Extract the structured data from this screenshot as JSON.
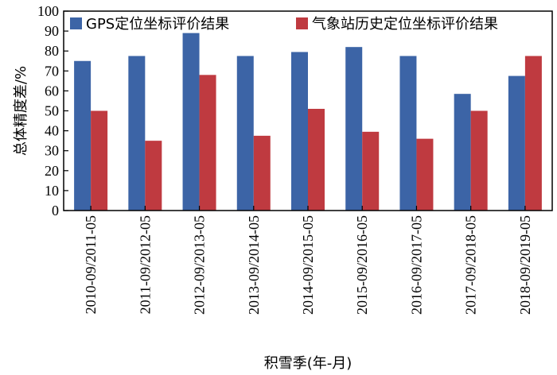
{
  "chart_data": {
    "type": "bar",
    "categories": [
      "2010-09/2011-05",
      "2011-09/2012-05",
      "2012-09/2013-05",
      "2013-09/2014-05",
      "2014-09/2015-05",
      "2015-09/2016-05",
      "2016-09/2017-05",
      "2017-09/2018-05",
      "2018-09/2019-05"
    ],
    "series": [
      {
        "name": "GPS定位坐标评价结果",
        "color": "#3c64a6",
        "values": [
          75,
          77.5,
          89,
          77.5,
          79.5,
          82,
          77.5,
          58.5,
          67.5
        ]
      },
      {
        "name": "气象站历史定位坐标评价结果",
        "color": "#bf3a40",
        "values": [
          50,
          35,
          68,
          37.5,
          51,
          39.5,
          36,
          50,
          77.5
        ]
      }
    ],
    "xlabel": "积雪季(年-月)",
    "ylabel": "总体精度差/%",
    "ylim": [
      0,
      100
    ],
    "yticks": [
      0,
      10,
      20,
      30,
      40,
      50,
      60,
      70,
      80,
      90,
      100
    ],
    "grid": false,
    "legend": "top"
  }
}
